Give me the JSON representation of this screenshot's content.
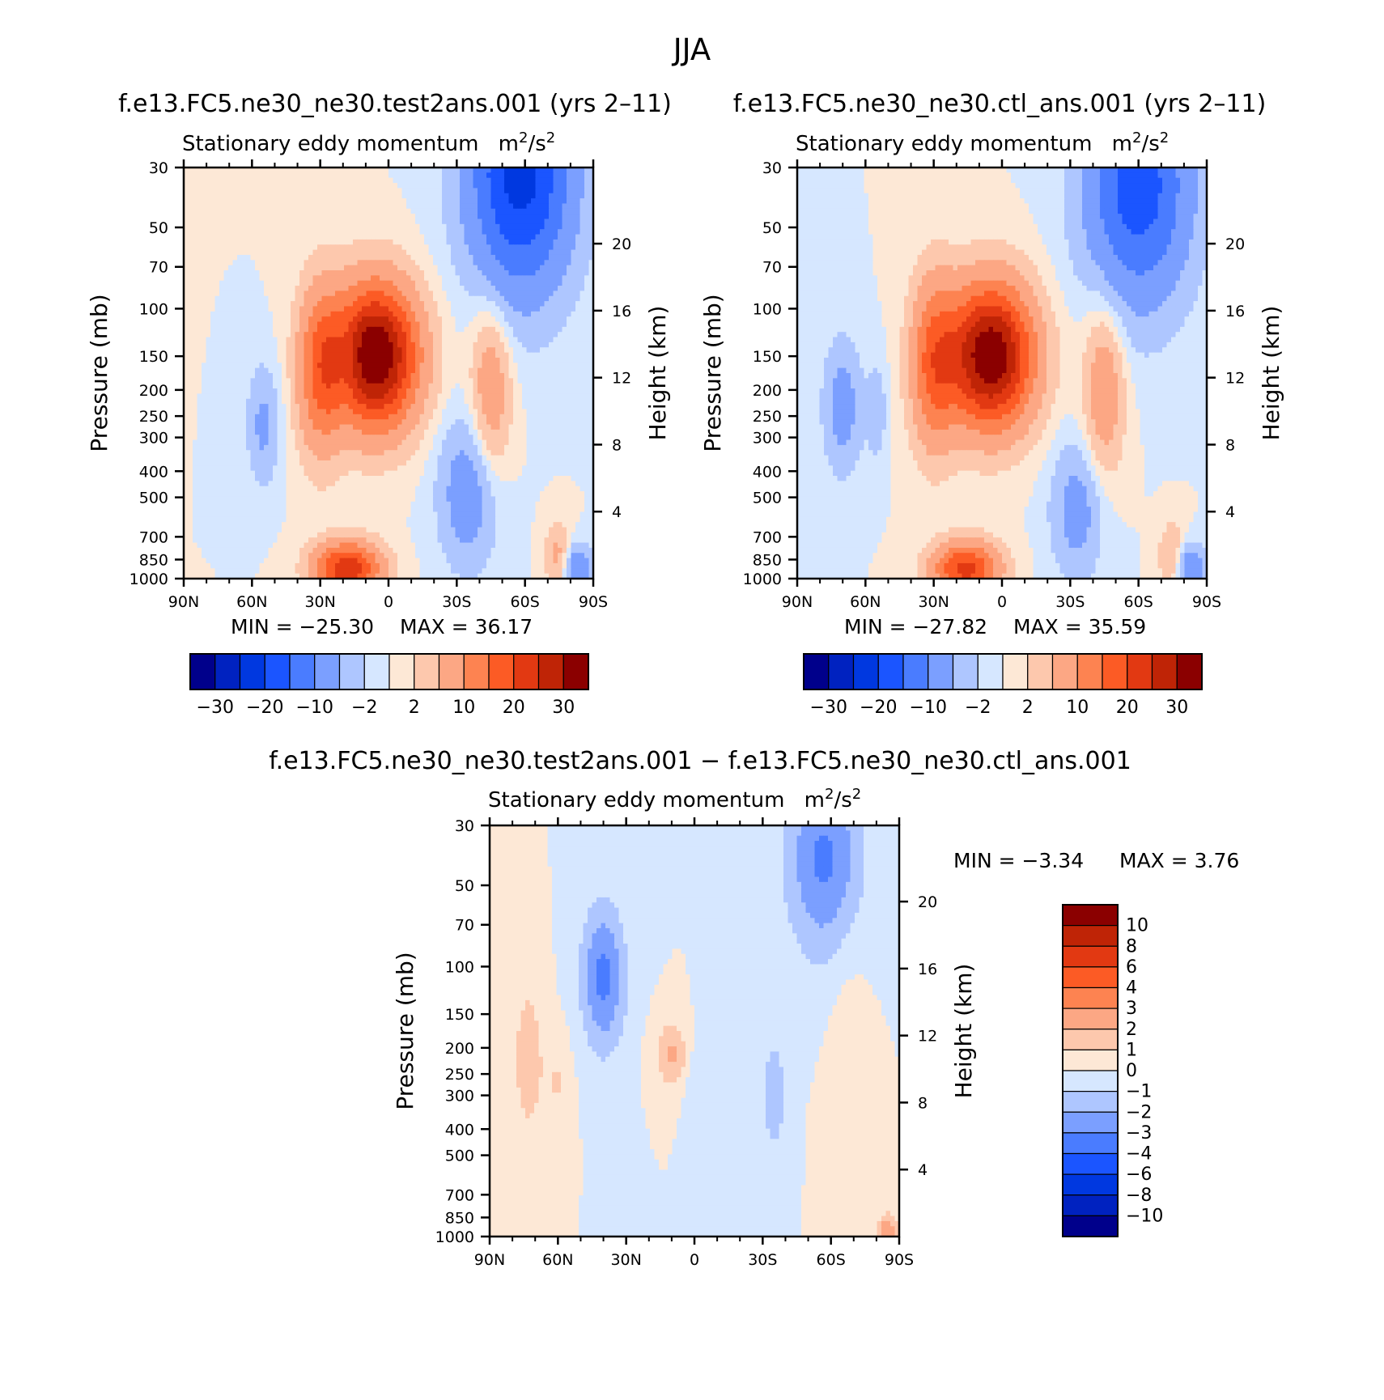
{
  "figure": {
    "title": "JJA",
    "variable_label": "Stationary eddy momentum",
    "units_base": "m",
    "units_sup1": "2",
    "units_mid": "/s",
    "units_sup2": "2"
  },
  "chart_data": [
    {
      "type": "heatmap",
      "id": "test",
      "title": "f.e13.FC5.ne30_ne30.test2ans.001 (yrs 2–11)",
      "subtitle": "Stationary eddy momentum",
      "units": "m²/s²",
      "ylabel": "Pressure (mb)",
      "y2label": "Height (km)",
      "x_ticks": [
        "90N",
        "60N",
        "30N",
        "0",
        "30S",
        "60S",
        "90S"
      ],
      "x_range": [
        90,
        -90
      ],
      "y_ticks": [
        30,
        50,
        70,
        100,
        150,
        200,
        250,
        300,
        400,
        500,
        700,
        850,
        1000
      ],
      "y_range": [
        30,
        1000
      ],
      "height_ticks": [
        20,
        16,
        12,
        8,
        4
      ],
      "min_text": "MIN =  −25.30",
      "max_text": "MAX =   36.17",
      "min": -25.3,
      "max": 36.17,
      "colorbar_labels": [
        "−30",
        "−20",
        "−10",
        "−2",
        "2",
        "10",
        "20",
        "30"
      ],
      "colorbar_levels": [
        -35,
        -30,
        -25,
        -20,
        -15,
        -10,
        -5,
        -2,
        0,
        2,
        5,
        10,
        15,
        20,
        25,
        30,
        35
      ],
      "features": [
        {
          "lat": 6,
          "p": 150,
          "amp": 36,
          "slat": 13,
          "slp": 0.42
        },
        {
          "lat": 30,
          "p": 170,
          "amp": 14,
          "slat": 7,
          "slp": 0.5
        },
        {
          "lat": -45,
          "p": 200,
          "amp": 9,
          "slat": 6,
          "slp": 0.5
        },
        {
          "lat": 18,
          "p": 920,
          "amp": 24,
          "slat": 10,
          "slp": 0.16
        },
        {
          "lat": 55,
          "p": 270,
          "amp": -6,
          "slat": 5,
          "slp": 0.35
        },
        {
          "lat": 18,
          "p": 160,
          "amp": -4,
          "slat": 4,
          "slp": 0.3
        },
        {
          "lat": -58,
          "p": 32,
          "amp": -22,
          "slat": 16,
          "slp": 0.7
        },
        {
          "lat": -35,
          "p": 480,
          "amp": -8,
          "slat": 9,
          "slp": 0.45
        },
        {
          "lat": -82,
          "p": 920,
          "amp": -10,
          "slat": 5,
          "slp": 0.15
        },
        {
          "lat": -75,
          "p": 850,
          "amp": 8,
          "slat": 4,
          "slp": 0.2
        }
      ]
    },
    {
      "type": "heatmap",
      "id": "ctl",
      "title": "f.e13.FC5.ne30_ne30.ctl_ans.001 (yrs 2–11)",
      "subtitle": "Stationary eddy momentum",
      "units": "m²/s²",
      "ylabel": "Pressure (mb)",
      "y2label": "Height (km)",
      "x_ticks": [
        "90N",
        "60N",
        "30N",
        "0",
        "30S",
        "60S",
        "90S"
      ],
      "x_range": [
        90,
        -90
      ],
      "y_ticks": [
        30,
        50,
        70,
        100,
        150,
        200,
        250,
        300,
        400,
        500,
        700,
        850,
        1000
      ],
      "y_range": [
        30,
        1000
      ],
      "height_ticks": [
        20,
        16,
        12,
        8,
        4
      ],
      "min_text": "MIN =  −27.82",
      "max_text": "MAX =   35.59",
      "min": -27.82,
      "max": 35.59,
      "colorbar_labels": [
        "−30",
        "−20",
        "−10",
        "−2",
        "2",
        "10",
        "20",
        "30"
      ],
      "colorbar_levels": [
        -35,
        -30,
        -25,
        -20,
        -15,
        -10,
        -5,
        -2,
        0,
        2,
        5,
        10,
        15,
        20,
        25,
        30,
        35
      ],
      "features": [
        {
          "lat": 5,
          "p": 150,
          "amp": 35,
          "slat": 13,
          "slp": 0.42
        },
        {
          "lat": 30,
          "p": 160,
          "amp": 15,
          "slat": 7,
          "slp": 0.5
        },
        {
          "lat": -45,
          "p": 200,
          "amp": 9,
          "slat": 6,
          "slp": 0.5
        },
        {
          "lat": 16,
          "p": 920,
          "amp": 22,
          "slat": 10,
          "slp": 0.16
        },
        {
          "lat": 70,
          "p": 230,
          "amp": -7,
          "slat": 6,
          "slp": 0.4
        },
        {
          "lat": 55,
          "p": 240,
          "amp": -4,
          "slat": 3,
          "slp": 0.3
        },
        {
          "lat": -60,
          "p": 35,
          "amp": -18,
          "slat": 16,
          "slp": 0.7
        },
        {
          "lat": -33,
          "p": 560,
          "amp": -7,
          "slat": 8,
          "slp": 0.4
        },
        {
          "lat": -82,
          "p": 920,
          "amp": -10,
          "slat": 5,
          "slp": 0.15
        },
        {
          "lat": -75,
          "p": 850,
          "amp": 7,
          "slat": 4,
          "slp": 0.2
        }
      ]
    },
    {
      "type": "heatmap",
      "id": "diff",
      "title": "f.e13.FC5.ne30_ne30.test2ans.001 − f.e13.FC5.ne30_ne30.ctl_ans.001",
      "subtitle": "Stationary eddy momentum",
      "units": "m²/s²",
      "ylabel": "Pressure (mb)",
      "y2label": "Height (km)",
      "x_ticks": [
        "90N",
        "60N",
        "30N",
        "0",
        "30S",
        "60S",
        "90S"
      ],
      "x_range": [
        90,
        -90
      ],
      "y_ticks": [
        30,
        50,
        70,
        100,
        150,
        200,
        250,
        300,
        400,
        500,
        700,
        850,
        1000
      ],
      "y_range": [
        30,
        1000
      ],
      "height_ticks": [
        20,
        16,
        12,
        8,
        4
      ],
      "min_text": "MIN =   −3.34",
      "max_text": "MAX =    3.76",
      "min": -3.34,
      "max": 3.76,
      "colorbar_labels": [
        "10",
        "8",
        "6",
        "4",
        "3",
        "2",
        "1",
        "0",
        "−1",
        "−2",
        "−3",
        "−4",
        "−6",
        "−8",
        "−10"
      ],
      "colorbar_levels": [
        -12,
        -10,
        -8,
        -6,
        -4,
        -3,
        -2,
        -1,
        0,
        1,
        2,
        3,
        4,
        6,
        8,
        10,
        12
      ],
      "features": [
        {
          "lat": 40,
          "p": 110,
          "amp": -3.3,
          "slat": 7,
          "slp": 0.45
        },
        {
          "lat": -57,
          "p": 40,
          "amp": -3.2,
          "slat": 12,
          "slp": 0.6
        },
        {
          "lat": -35,
          "p": 300,
          "amp": -1.6,
          "slat": 4,
          "slp": 0.4
        },
        {
          "lat": 0,
          "p": 280,
          "amp": -0.8,
          "slat": 3,
          "slp": 0.3
        },
        {
          "lat": 73,
          "p": 220,
          "amp": 1.6,
          "slat": 5,
          "slp": 0.5
        },
        {
          "lat": 10,
          "p": 210,
          "amp": 2.2,
          "slat": 5,
          "slp": 0.2
        },
        {
          "lat": -68,
          "p": 250,
          "amp": 0.8,
          "slat": 6,
          "slp": 0.8
        },
        {
          "lat": 60,
          "p": 270,
          "amp": 1.0,
          "slat": 4,
          "slp": 0.3
        },
        {
          "lat": -85,
          "p": 950,
          "amp": 3.0,
          "slat": 3,
          "slp": 0.1
        }
      ]
    }
  ]
}
